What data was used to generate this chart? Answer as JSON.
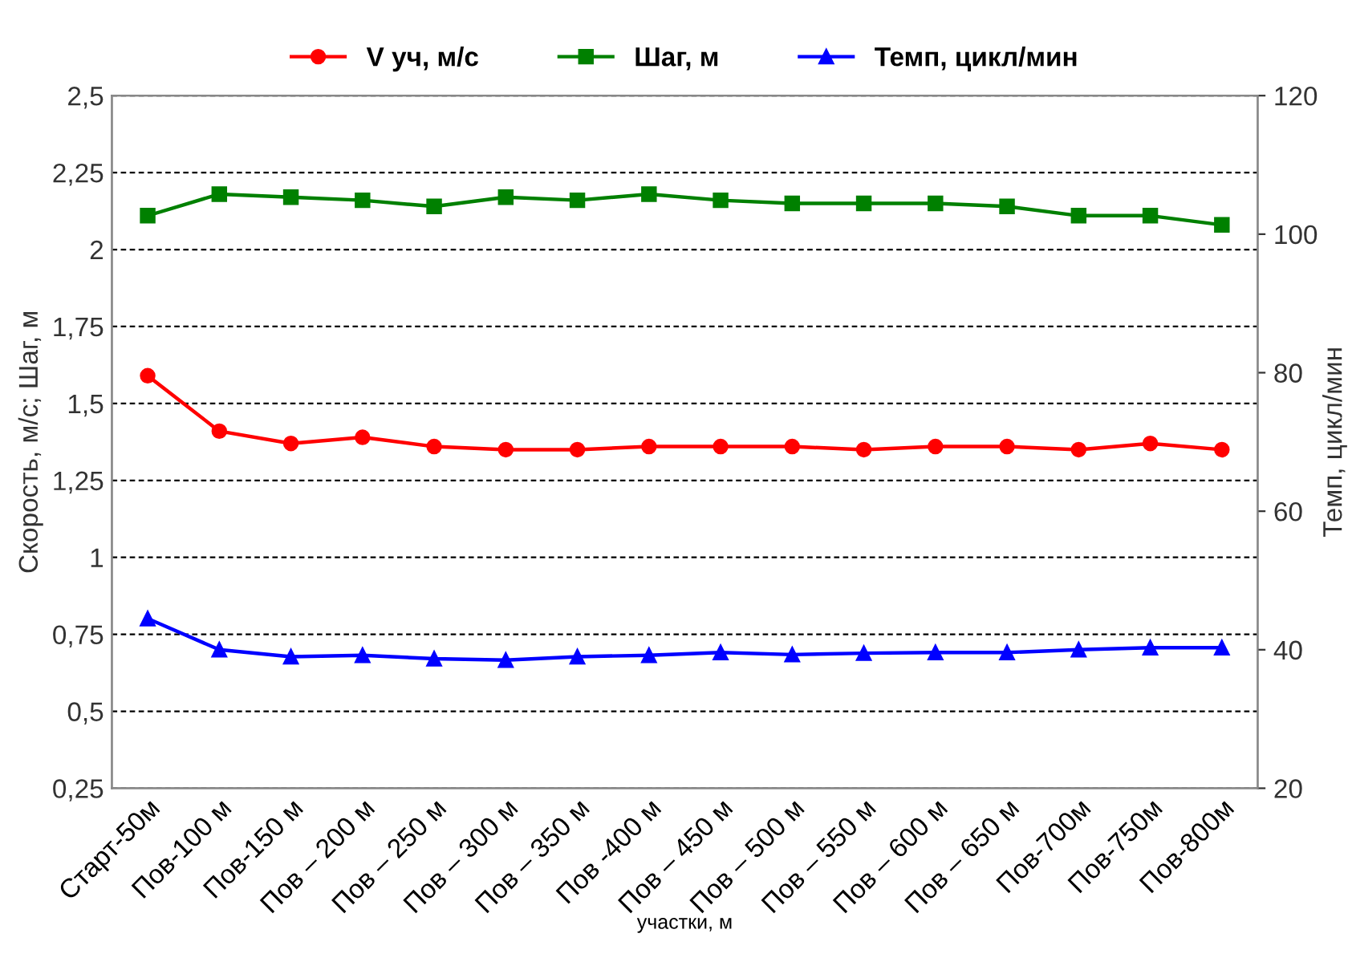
{
  "chart_data": {
    "type": "line",
    "xlabel": "участки, м",
    "ylabel": "Скорость, м/с; Шаг, м",
    "y2label": "Темп, цикл/мин",
    "categories": [
      "Старт-50м",
      "Пов-100 м",
      "Пов-150 м",
      "Пов – 200 м",
      "Пов – 250 м",
      "Пов – 300 м",
      "Пов – 350 м",
      "Пов -400 м",
      "Пов – 450 м",
      "Пов – 500 м",
      "Пов – 550 м",
      "Пов – 600 м",
      "Пов – 650 м",
      "Пов-700м",
      "Пов-750м",
      "Пов-800м"
    ],
    "series": [
      {
        "name": "V уч, м/с",
        "color": "#ff0000",
        "marker": "circle",
        "values": [
          1.59,
          1.41,
          1.37,
          1.39,
          1.36,
          1.35,
          1.35,
          1.36,
          1.36,
          1.36,
          1.35,
          1.36,
          1.36,
          1.35,
          1.37,
          1.35
        ]
      },
      {
        "name": "Шаг, м",
        "color": "#008000",
        "marker": "square",
        "values": [
          2.11,
          2.18,
          2.17,
          2.16,
          2.14,
          2.17,
          2.16,
          2.18,
          2.16,
          2.15,
          2.15,
          2.15,
          2.14,
          2.11,
          2.11,
          2.08
        ]
      },
      {
        "name": "Темп, цикл/мин",
        "color": "#0000ff",
        "marker": "triangle",
        "axis": "y2",
        "values": [
          44.5,
          40.0,
          39.0,
          39.2,
          38.7,
          38.5,
          39.0,
          39.2,
          39.6,
          39.3,
          39.5,
          39.6,
          39.6,
          40.0,
          40.3,
          40.3
        ]
      }
    ],
    "ylim": [
      0.25,
      2.5
    ],
    "yticks": [
      {
        "value": 0.25,
        "label": "0,25"
      },
      {
        "value": 0.5,
        "label": "0,5"
      },
      {
        "value": 0.75,
        "label": "0,75"
      },
      1,
      {
        "value": 1.25,
        "label": "1,25"
      },
      {
        "value": 1.5,
        "label": "1,5"
      },
      {
        "value": 1.75,
        "label": "1,75"
      },
      2,
      {
        "value": 2.25,
        "label": "2,25"
      },
      {
        "value": 2.5,
        "label": "2,5"
      }
    ],
    "y2lim": [
      20,
      120
    ],
    "y2ticks": [
      20,
      40,
      60,
      80,
      100,
      120
    ],
    "grid": "y",
    "legend": "top",
    "line_style": "solid"
  }
}
